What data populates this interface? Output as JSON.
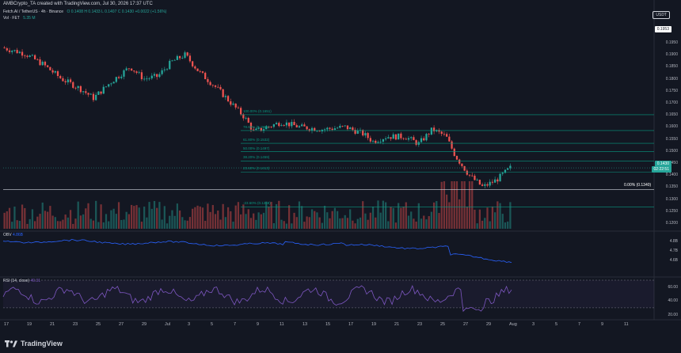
{
  "header": {
    "title": "AMBCrypto_TA created with TradingView.com, Jul 30, 2026 17:37 UTC"
  },
  "symbol_legend": {
    "symbol": "Fetch.AI / TetherUS · 4h · Binance",
    "ohlc": "O 0.1408  H 0.1433  L 0.1407  C 0.1430  +0.0022 (+1.56%)",
    "vol_label": "Vol · FET",
    "vol_value": "5.35 M"
  },
  "currency_button": "USDT",
  "price_axis": [
    "0.1950",
    "0.1900",
    "0.1850",
    "0.1800",
    "0.1750",
    "0.1700",
    "0.1650",
    "0.1600",
    "0.1550",
    "0.1500",
    "0.1450",
    "0.1400",
    "0.1350",
    "0.1300",
    "0.1250",
    "0.1200"
  ],
  "price_tags": {
    "top": "0.1953",
    "current": "0.1430",
    "countdown": "02:22:51"
  },
  "fib_levels": [
    {
      "label": "100.00% (0.1651)",
      "price": 0.1651
    },
    {
      "label": "78.60% (0.1585)",
      "price": 0.1585
    },
    {
      "label": "61.80% (0.1532)",
      "price": 0.1532
    },
    {
      "label": "50.00% (0.1497)",
      "price": 0.1497
    },
    {
      "label": "38.20% (0.1459)",
      "price": 0.1459
    },
    {
      "label": "23.60% (0.1413)",
      "price": 0.1413
    },
    {
      "label": "0.00% (0.1340)",
      "price": 0.134
    },
    {
      "label": "-23.60% (0.1268)",
      "price": 0.1268
    }
  ],
  "obv": {
    "label": "OBV",
    "value": "4.86B",
    "axis": [
      "4.8B",
      "4.7B",
      "4.6B"
    ]
  },
  "rsi": {
    "label": "RSI (14, close)",
    "value": "49.31",
    "axis": [
      "60.00",
      "40.00",
      "20.00"
    ]
  },
  "date_axis": [
    "17",
    "19",
    "21",
    "23",
    "25",
    "27",
    "29",
    "Jul",
    "3",
    "5",
    "7",
    "9",
    "11",
    "13",
    "15",
    "17",
    "19",
    "21",
    "23",
    "25",
    "27",
    "29",
    "Aug",
    "3",
    "5",
    "7",
    "9",
    "11"
  ],
  "brand": "TradingView",
  "colors": {
    "up": "#26a69a",
    "down": "#ef5350",
    "fib": "#089981",
    "obv": "#2962ff",
    "rsi": "#7e57c2",
    "background": "#131722"
  }
}
